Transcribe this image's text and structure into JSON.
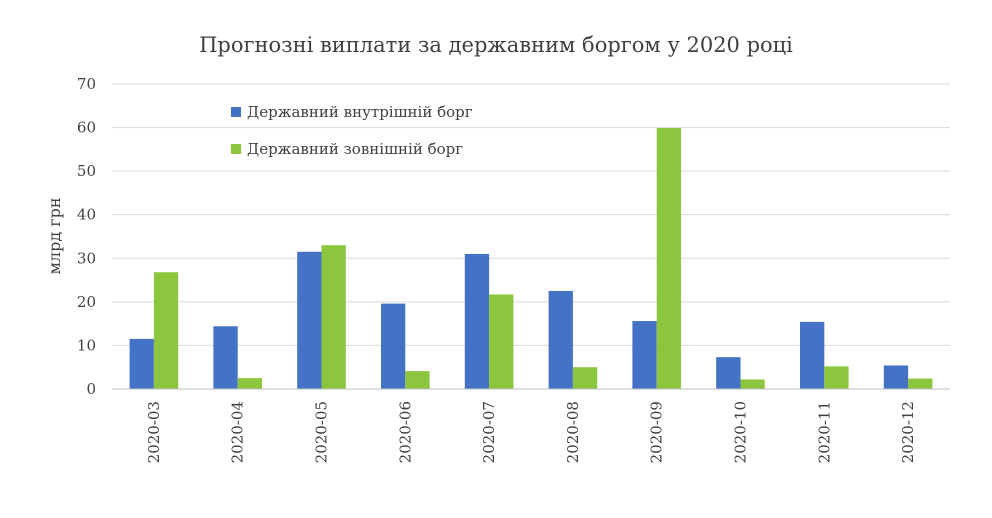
{
  "chart_data": {
    "type": "bar",
    "title": "Прогнозні виплати за державним боргом у 2020 році",
    "xlabel": "",
    "ylabel": "млрд грн",
    "ylim": [
      0,
      70
    ],
    "yticks": [
      0,
      10,
      20,
      30,
      40,
      50,
      60,
      70
    ],
    "grid": true,
    "legend_position": "top-left",
    "categories": [
      "2020-03",
      "2020-04",
      "2020-05",
      "2020-06",
      "2020-07",
      "2020-08",
      "2020-09",
      "2020-10",
      "2020-11",
      "2020-12"
    ],
    "series": [
      {
        "name": "Державний внутрішній борг",
        "color": "#4472c4",
        "values": [
          11.5,
          14.4,
          31.5,
          19.6,
          31.0,
          22.5,
          15.6,
          7.3,
          15.4,
          5.4
        ]
      },
      {
        "name": "Державний зовнішній борг",
        "color": "#8cc63f",
        "values": [
          26.8,
          2.5,
          33.0,
          4.1,
          21.7,
          5.0,
          59.9,
          2.2,
          5.2,
          2.4
        ]
      }
    ]
  }
}
